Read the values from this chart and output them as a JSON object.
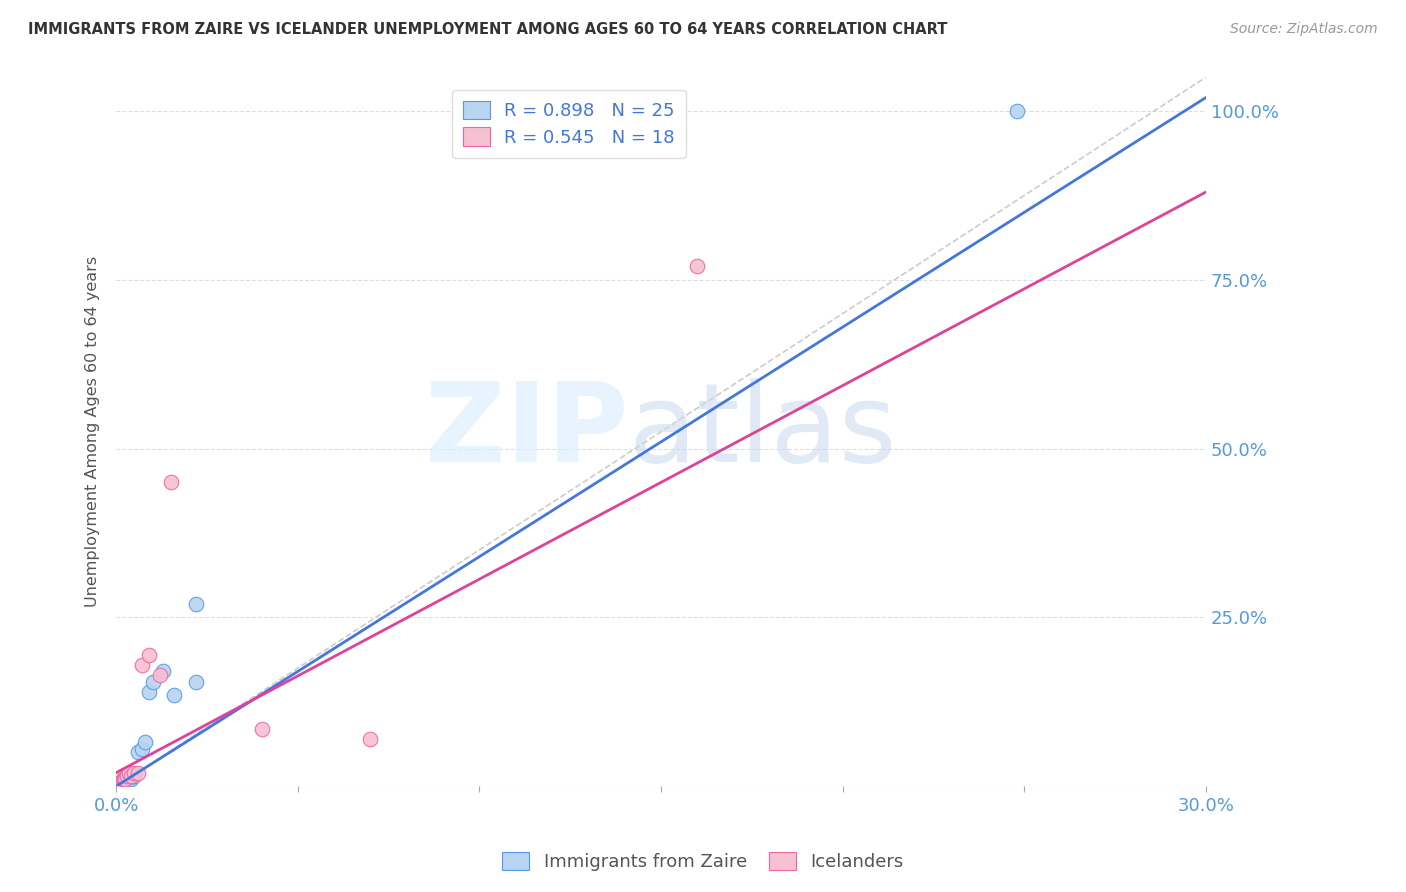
{
  "title": "IMMIGRANTS FROM ZAIRE VS ICELANDER UNEMPLOYMENT AMONG AGES 60 TO 64 YEARS CORRELATION CHART",
  "source": "Source: ZipAtlas.com",
  "ylabel": "Unemployment Among Ages 60 to 64 years",
  "legend_blue_r": "R = 0.898",
  "legend_blue_n": "N = 25",
  "legend_pink_r": "R = 0.545",
  "legend_pink_n": "N = 18",
  "legend_label_blue": "Immigrants from Zaire",
  "legend_label_pink": "Icelanders",
  "blue_face_color": "#b8d4f0",
  "blue_edge_color": "#5599ee",
  "pink_face_color": "#f5c0d0",
  "pink_edge_color": "#ee66aa",
  "blue_line_color": "#4477dd",
  "pink_line_color": "#dd4499",
  "diag_color": "#cccccc",
  "grid_color": "#ddddee",
  "right_label_color": "#5599dd",
  "title_color": "#333333",
  "source_color": "#999999",
  "ylabel_color": "#555555",
  "bottom_label_color": "#555555",
  "xlim": [
    0.0,
    0.3
  ],
  "ylim": [
    0.0,
    1.05
  ],
  "x_ticks": [
    0.0,
    0.05,
    0.1,
    0.15,
    0.2,
    0.25,
    0.3
  ],
  "x_tick_labels": [
    "0.0%",
    "",
    "",
    "",
    "",
    "",
    "30.0%"
  ],
  "y_ticks": [
    0.0,
    0.25,
    0.5,
    0.75,
    1.0
  ],
  "y_tick_labels": [
    "",
    "25.0%",
    "50.0%",
    "75.0%",
    "100.0%"
  ],
  "blue_line_x": [
    0.0,
    0.3
  ],
  "blue_line_y": [
    0.0,
    1.02
  ],
  "pink_line_x": [
    0.0,
    0.3
  ],
  "pink_line_y": [
    0.02,
    0.88
  ],
  "diag_line_x": [
    0.0,
    0.3
  ],
  "diag_line_y": [
    0.0,
    1.05
  ],
  "blue_scatter_x": [
    0.0008,
    0.001,
    0.0012,
    0.0015,
    0.0018,
    0.002,
    0.0022,
    0.0025,
    0.003,
    0.003,
    0.0035,
    0.004,
    0.004,
    0.0045,
    0.005,
    0.006,
    0.007,
    0.008,
    0.009,
    0.01,
    0.013,
    0.016,
    0.022,
    0.022,
    0.248
  ],
  "blue_scatter_y": [
    0.005,
    0.005,
    0.005,
    0.008,
    0.005,
    0.01,
    0.01,
    0.008,
    0.01,
    0.015,
    0.01,
    0.01,
    0.015,
    0.015,
    0.015,
    0.05,
    0.055,
    0.065,
    0.14,
    0.155,
    0.17,
    0.135,
    0.155,
    0.27,
    1.0
  ],
  "pink_scatter_x": [
    0.0008,
    0.001,
    0.0015,
    0.0018,
    0.002,
    0.0025,
    0.003,
    0.0035,
    0.004,
    0.005,
    0.006,
    0.007,
    0.009,
    0.012,
    0.015,
    0.04,
    0.07,
    0.16
  ],
  "pink_scatter_y": [
    0.005,
    0.005,
    0.005,
    0.01,
    0.01,
    0.01,
    0.015,
    0.02,
    0.015,
    0.02,
    0.02,
    0.18,
    0.195,
    0.165,
    0.45,
    0.085,
    0.07,
    0.77
  ],
  "watermark_zip_color": "#ddeeff",
  "watermark_atlas_color": "#c8d8ee"
}
